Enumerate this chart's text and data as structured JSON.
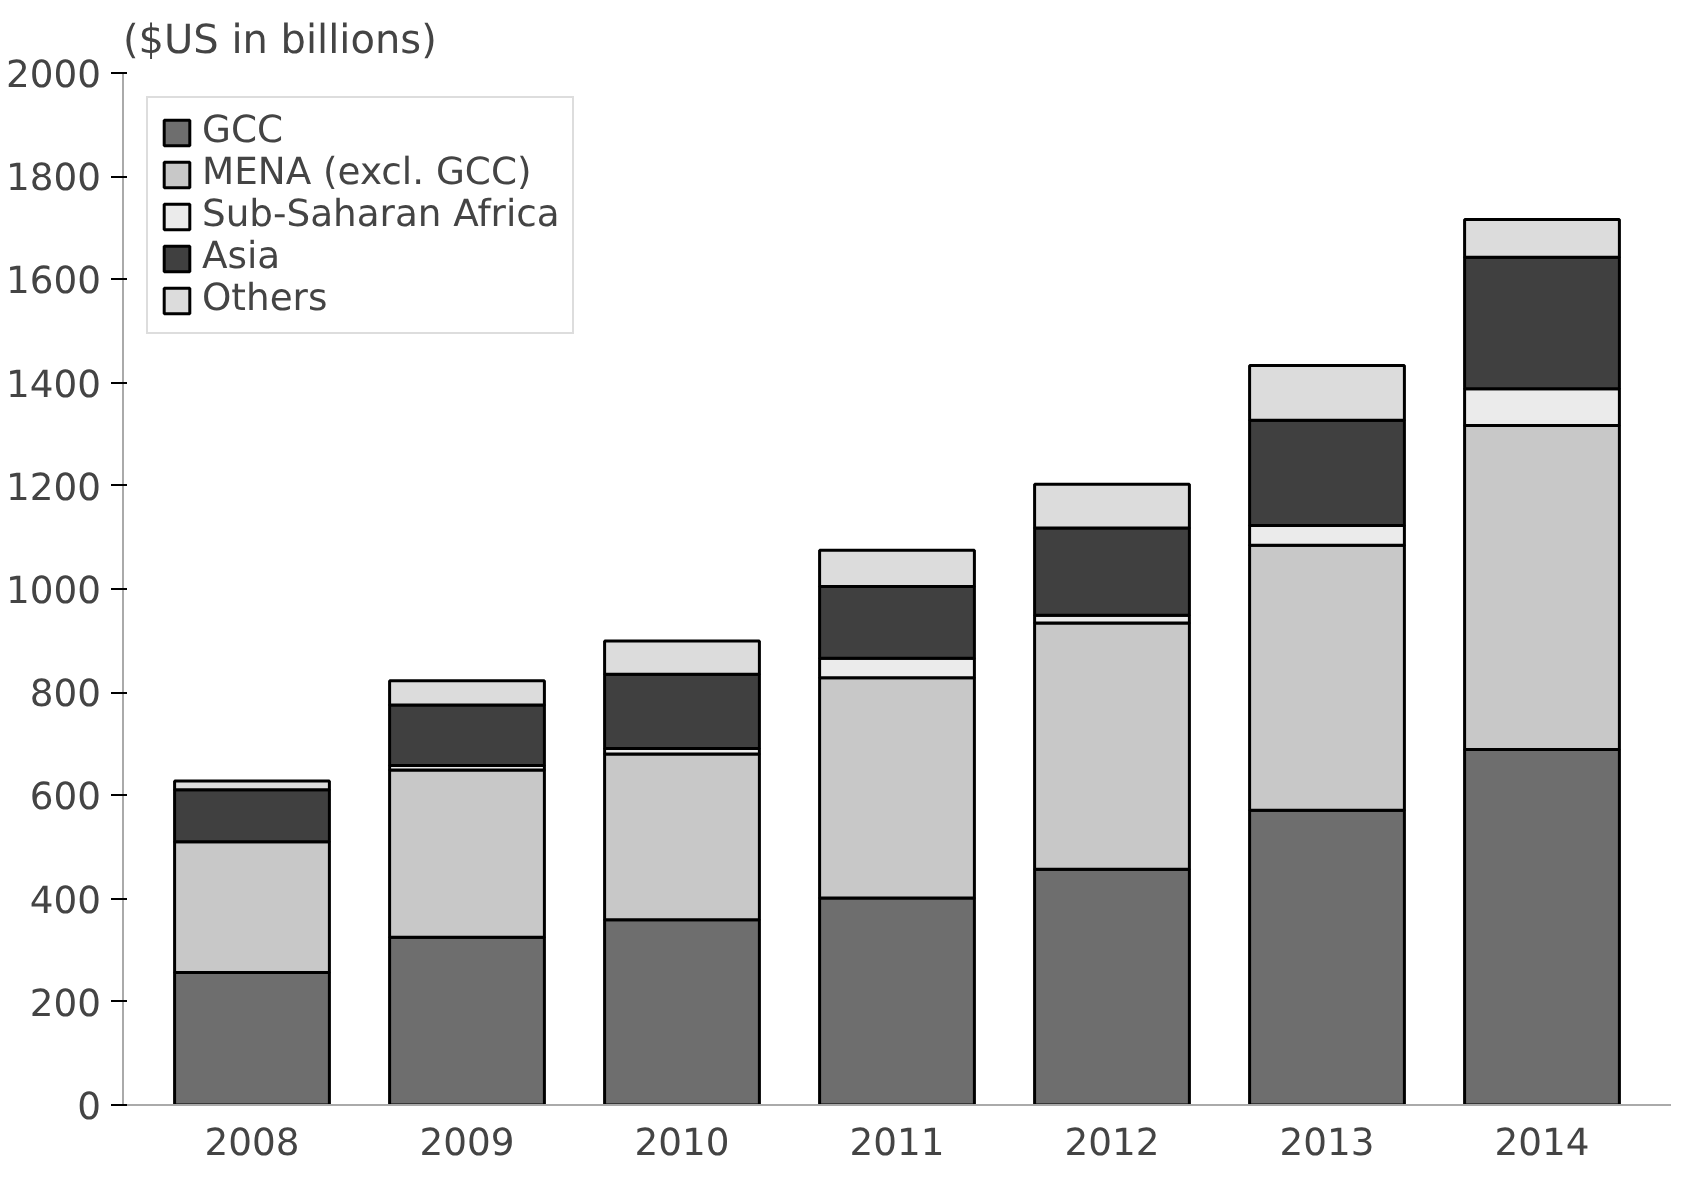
{
  "chart_data": {
    "type": "bar",
    "stacked": true,
    "ylabel": "($US in billions)",
    "categories": [
      "2008",
      "2009",
      "2010",
      "2011",
      "2012",
      "2013",
      "2014"
    ],
    "series": [
      {
        "name": "GCC",
        "color": "#6e6e6e",
        "values": [
          257,
          325,
          359,
          401,
          457,
          571,
          689
        ]
      },
      {
        "name": "MENA (excl. GCC)",
        "color": "#c8c8c8",
        "values": [
          253,
          324,
          321,
          427,
          477,
          514,
          628
        ]
      },
      {
        "name": "Sub-Saharan Africa",
        "color": "#ebebeb",
        "values": [
          null,
          9,
          11,
          38,
          15,
          38,
          71
        ]
      },
      {
        "name": "Asia",
        "color": "#404040",
        "values": [
          101,
          117,
          144,
          139,
          169,
          204,
          255
        ]
      },
      {
        "name": "Others",
        "color": "#dcdcdc",
        "values": [
          17,
          47,
          64,
          70,
          85,
          106,
          73
        ]
      }
    ],
    "ylim": [
      0,
      2000
    ],
    "yticks": [
      0,
      200,
      400,
      600,
      800,
      1000,
      1200,
      1400,
      1600,
      1800,
      2000
    ],
    "grid": false,
    "legend": "top left"
  }
}
